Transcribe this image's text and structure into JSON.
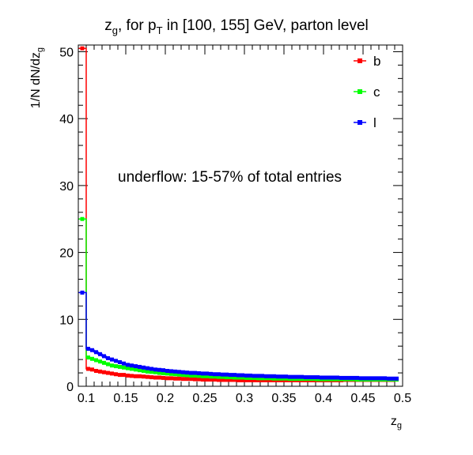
{
  "chart_data": {
    "type": "line",
    "title": {
      "main": "z",
      "main_sub": "g",
      "mid": ", for p",
      "mid_sub": "T",
      "rest": " in [100, 155] GeV, parton level"
    },
    "xlabel": {
      "main": "z",
      "sub": "g"
    },
    "ylabel": {
      "main": "1/N dN/dz",
      "sub": "g"
    },
    "xlim": [
      0.09,
      0.5
    ],
    "ylim": [
      0,
      51
    ],
    "x_ticks": [
      "0.1",
      "0.15",
      "0.2",
      "0.25",
      "0.3",
      "0.35",
      "0.4",
      "0.45",
      "0.5"
    ],
    "x_tick_values": [
      0.1,
      0.15,
      0.2,
      0.25,
      0.3,
      0.35,
      0.4,
      0.45,
      0.5
    ],
    "y_ticks": [
      "0",
      "10",
      "20",
      "30",
      "40",
      "50"
    ],
    "y_tick_values": [
      0,
      10,
      20,
      30,
      40,
      50
    ],
    "annotation": "underflow: 15-57% of total entries",
    "legend_position": "top-right",
    "grid": false,
    "x_bins": [
      0.09,
      0.1,
      0.105,
      0.11,
      0.115,
      0.12,
      0.125,
      0.13,
      0.135,
      0.14,
      0.145,
      0.15,
      0.155,
      0.16,
      0.165,
      0.17,
      0.175,
      0.18,
      0.185,
      0.19,
      0.195,
      0.2,
      0.205,
      0.21,
      0.215,
      0.22,
      0.225,
      0.23,
      0.235,
      0.24,
      0.245,
      0.25,
      0.255,
      0.26,
      0.265,
      0.27,
      0.275,
      0.28,
      0.285,
      0.29,
      0.295,
      0.3,
      0.305,
      0.31,
      0.315,
      0.32,
      0.325,
      0.33,
      0.335,
      0.34,
      0.345,
      0.35,
      0.355,
      0.36,
      0.365,
      0.37,
      0.375,
      0.38,
      0.385,
      0.39,
      0.395,
      0.4,
      0.405,
      0.41,
      0.415,
      0.42,
      0.425,
      0.43,
      0.435,
      0.44,
      0.445,
      0.45,
      0.455,
      0.46,
      0.465,
      0.47,
      0.475,
      0.48,
      0.485,
      0.49,
      0.495,
      0.5
    ],
    "series": [
      {
        "name": "b",
        "color": "#ff0000",
        "values": [
          50.5,
          2.6,
          2.5,
          2.3,
          2.2,
          2.1,
          2.0,
          1.9,
          1.8,
          1.7,
          1.7,
          1.6,
          1.55,
          1.5,
          1.5,
          1.45,
          1.4,
          1.35,
          1.3,
          1.3,
          1.25,
          1.2,
          1.2,
          1.15,
          1.15,
          1.1,
          1.1,
          1.1,
          1.05,
          1.05,
          1.0,
          1.0,
          1.0,
          1.0,
          0.95,
          0.95,
          0.95,
          0.95,
          0.95,
          0.9,
          0.9,
          0.9,
          0.9,
          0.9,
          0.9,
          0.9,
          0.9,
          0.9,
          0.9,
          0.9,
          0.9,
          0.9,
          0.9,
          0.9,
          0.9,
          0.9,
          0.9,
          0.9,
          0.9,
          0.9,
          0.9,
          0.9,
          0.9,
          0.9,
          0.9,
          0.9,
          0.95,
          0.95,
          0.95,
          0.95,
          0.95,
          0.95,
          0.95,
          0.95,
          0.95,
          0.95,
          0.95,
          0.95,
          0.95,
          1.0
        ]
      },
      {
        "name": "c",
        "color": "#00ff00",
        "values": [
          25.0,
          4.3,
          4.1,
          3.9,
          3.7,
          3.5,
          3.3,
          3.1,
          3.0,
          2.9,
          2.8,
          2.7,
          2.6,
          2.5,
          2.4,
          2.3,
          2.2,
          2.15,
          2.1,
          2.0,
          1.95,
          1.9,
          1.85,
          1.8,
          1.75,
          1.7,
          1.65,
          1.6,
          1.6,
          1.55,
          1.5,
          1.5,
          1.45,
          1.45,
          1.4,
          1.4,
          1.35,
          1.35,
          1.3,
          1.3,
          1.3,
          1.25,
          1.25,
          1.25,
          1.2,
          1.2,
          1.2,
          1.2,
          1.15,
          1.15,
          1.15,
          1.15,
          1.1,
          1.1,
          1.1,
          1.1,
          1.1,
          1.1,
          1.1,
          1.05,
          1.05,
          1.05,
          1.05,
          1.05,
          1.05,
          1.05,
          1.05,
          1.05,
          1.05,
          1.0,
          1.0,
          1.0,
          1.0,
          1.0,
          1.0,
          1.0,
          1.0,
          1.0,
          1.0,
          1.0
        ]
      },
      {
        "name": "l",
        "color": "#0000ff",
        "values": [
          14.0,
          5.6,
          5.4,
          5.1,
          4.8,
          4.5,
          4.2,
          4.0,
          3.8,
          3.6,
          3.4,
          3.2,
          3.1,
          3.0,
          2.9,
          2.8,
          2.7,
          2.6,
          2.5,
          2.45,
          2.4,
          2.3,
          2.25,
          2.2,
          2.15,
          2.1,
          2.05,
          2.0,
          2.0,
          1.95,
          1.9,
          1.9,
          1.85,
          1.8,
          1.8,
          1.75,
          1.75,
          1.7,
          1.7,
          1.65,
          1.65,
          1.6,
          1.6,
          1.55,
          1.55,
          1.55,
          1.5,
          1.5,
          1.5,
          1.45,
          1.45,
          1.45,
          1.4,
          1.4,
          1.4,
          1.4,
          1.35,
          1.35,
          1.35,
          1.35,
          1.3,
          1.3,
          1.3,
          1.3,
          1.3,
          1.25,
          1.25,
          1.25,
          1.25,
          1.25,
          1.2,
          1.2,
          1.2,
          1.2,
          1.2,
          1.2,
          1.2,
          1.15,
          1.15,
          1.15
        ]
      }
    ]
  }
}
